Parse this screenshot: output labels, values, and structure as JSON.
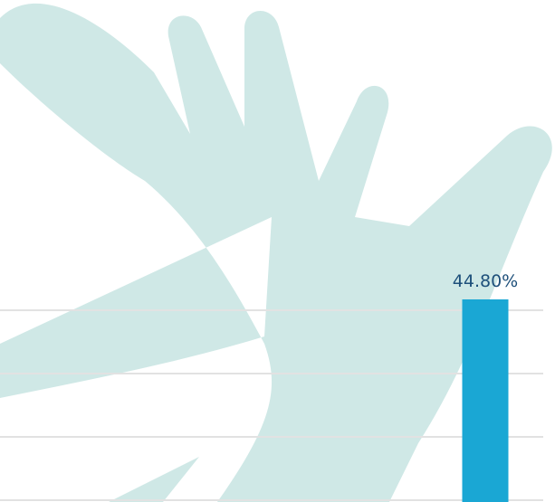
{
  "colors": {
    "background": "#ffffff",
    "watermark": "#cfe8e6",
    "gridline": "#e2e2e2",
    "bar": "#1aa7d4",
    "label": "#1d4f7a"
  },
  "watermark_icon": "raised-hand-silhouette",
  "chart_data": {
    "type": "bar",
    "categories": [
      ""
    ],
    "values": [
      44.8
    ],
    "data_labels": [
      "44.80%"
    ],
    "ylim": [
      0,
      100
    ],
    "grid": true,
    "legend": "none"
  }
}
